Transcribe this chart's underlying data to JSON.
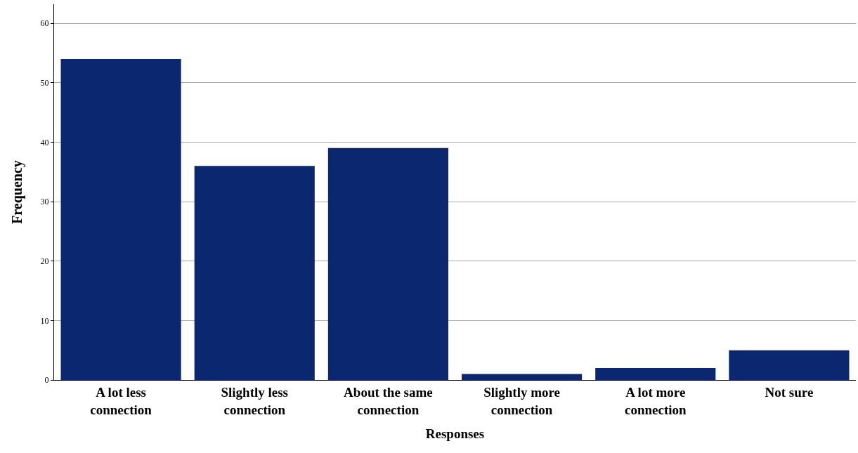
{
  "chart_data": {
    "type": "bar",
    "xlabel": "Responses",
    "ylabel": "Frequency",
    "categories": [
      "A lot less\nconnection",
      "Slightly less\nconnection",
      "About the same\nconnection",
      "Slightly more\nconnection",
      "A lot more\nconnection",
      "Not sure"
    ],
    "values": [
      54,
      36,
      39,
      1,
      2,
      5
    ],
    "color": "#0b2770",
    "ylim": [
      0,
      63.2
    ],
    "yticks": [
      0,
      10,
      20,
      30,
      40,
      50,
      60
    ],
    "grid": "y",
    "legend": false
  }
}
